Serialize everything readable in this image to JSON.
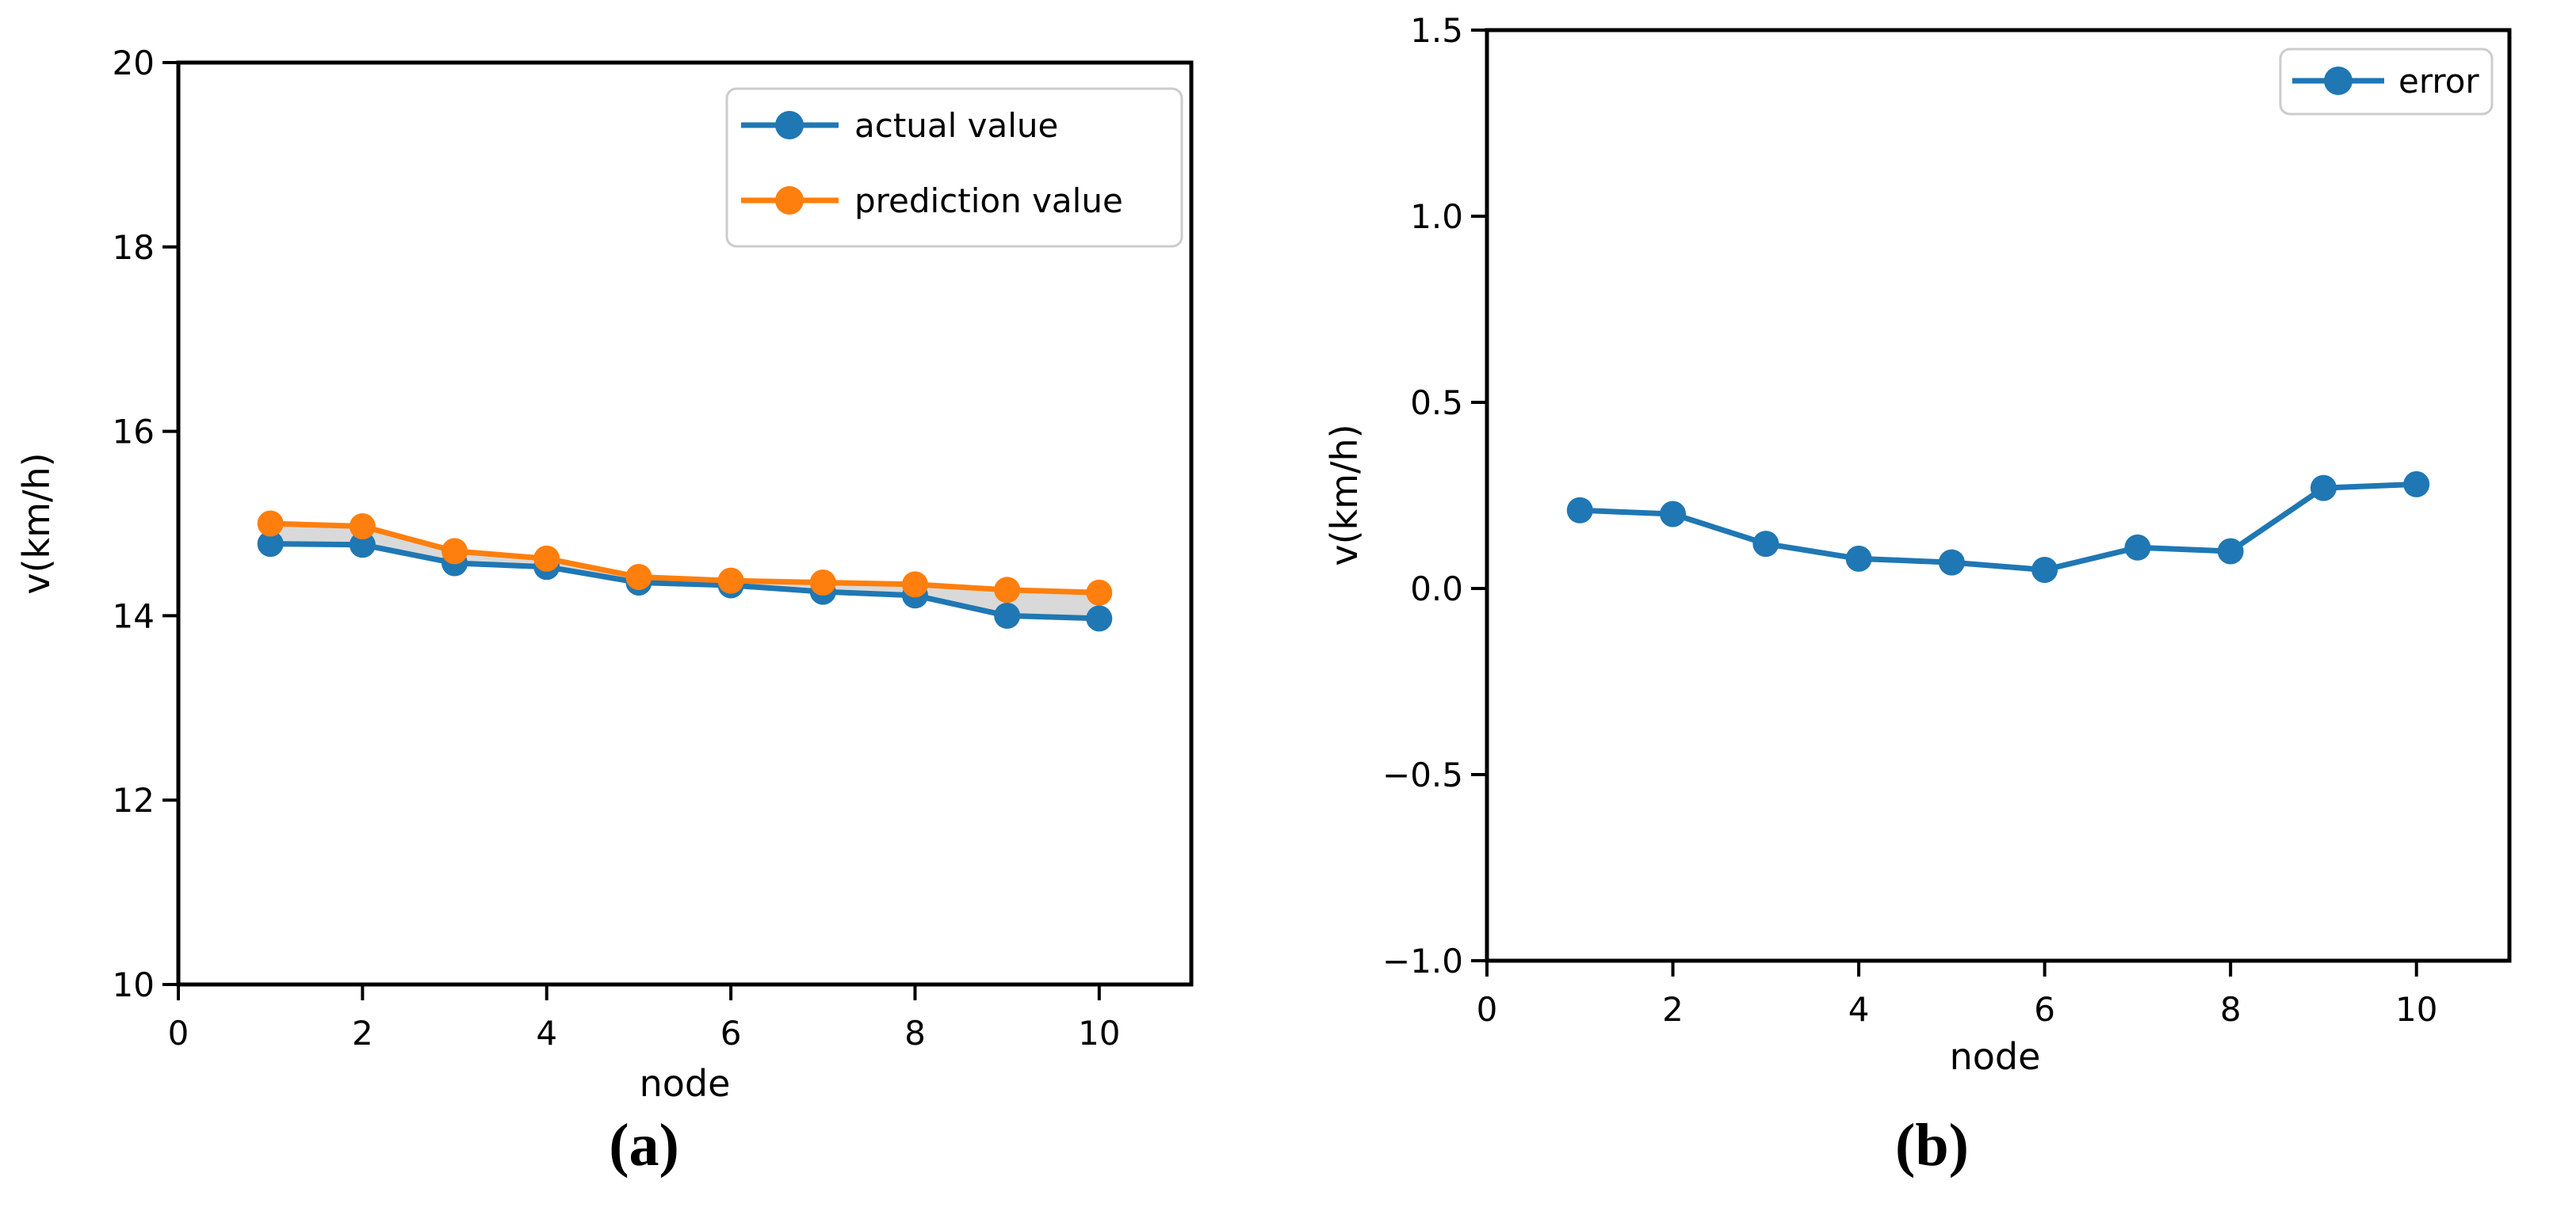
{
  "page": {
    "background": "#ffffff",
    "text_color": "#000000"
  },
  "figure": {
    "captions": {
      "a": "(a)",
      "b": "(b)"
    }
  },
  "colors": {
    "actual_blue": "#1f77b4",
    "prediction_orange": "#ff7f0e",
    "fill_gray": "#d9d9d9",
    "legend_border": "#cccccc",
    "axis_black": "#000000"
  },
  "chart_data": [
    {
      "id": "a",
      "type": "line",
      "title": "",
      "xlabel": "node",
      "ylabel": "v(km/h)",
      "xlim": [
        0,
        11
      ],
      "ylim": [
        10,
        20
      ],
      "xticks": [
        0,
        2,
        4,
        6,
        8,
        10
      ],
      "xtick_labels": [
        "0",
        "2",
        "4",
        "6",
        "8",
        "10"
      ],
      "yticks": [
        10,
        12,
        14,
        16,
        18,
        20
      ],
      "ytick_labels": [
        "10",
        "12",
        "14",
        "16",
        "18",
        "20"
      ],
      "grid": false,
      "legend_position": "upper right",
      "x": [
        1,
        2,
        3,
        4,
        5,
        6,
        7,
        8,
        9,
        10
      ],
      "series": [
        {
          "name": "actual value",
          "color": "#1f77b4",
          "marker": "circle",
          "values": [
            14.78,
            14.77,
            14.57,
            14.53,
            14.36,
            14.33,
            14.26,
            14.22,
            14.0,
            13.97
          ]
        },
        {
          "name": "prediction value",
          "color": "#ff7f0e",
          "marker": "circle",
          "values": [
            15.0,
            14.97,
            14.7,
            14.62,
            14.42,
            14.38,
            14.36,
            14.34,
            14.28,
            14.25
          ]
        }
      ],
      "fill_between": {
        "upper": "prediction value",
        "lower": "actual value",
        "color": "#d9d9d9"
      }
    },
    {
      "id": "b",
      "type": "line",
      "title": "",
      "xlabel": "node",
      "ylabel": "v(km/h)",
      "xlim": [
        0,
        11
      ],
      "ylim": [
        -1.0,
        1.5
      ],
      "xticks": [
        0,
        2,
        4,
        6,
        8,
        10
      ],
      "xtick_labels": [
        "0",
        "2",
        "4",
        "6",
        "8",
        "10"
      ],
      "yticks": [
        -1.0,
        -0.5,
        0.0,
        0.5,
        1.0,
        1.5
      ],
      "ytick_labels": [
        "−1.0",
        "−0.5",
        "0.0",
        "0.5",
        "1.0",
        "1.5"
      ],
      "grid": false,
      "legend_position": "upper right",
      "x": [
        1,
        2,
        3,
        4,
        5,
        6,
        7,
        8,
        9,
        10
      ],
      "series": [
        {
          "name": "error",
          "color": "#1f77b4",
          "marker": "circle",
          "values": [
            0.21,
            0.2,
            0.12,
            0.08,
            0.07,
            0.05,
            0.11,
            0.1,
            0.27,
            0.28
          ]
        }
      ]
    }
  ]
}
